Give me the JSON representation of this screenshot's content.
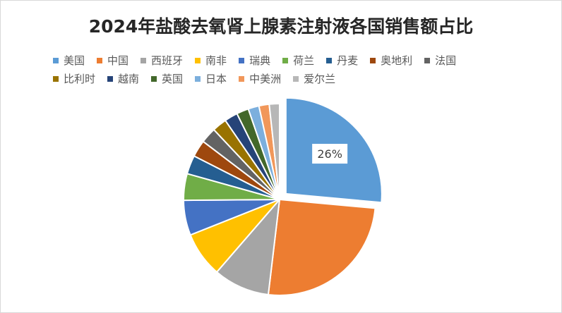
{
  "chart_data": {
    "type": "pie",
    "title": "2024年盐酸去氧肾上腺素注射液各国销售额占比",
    "legend_position": "top",
    "categories": [
      "美国",
      "中国",
      "西班牙",
      "南非",
      "瑞典",
      "荷兰",
      "丹麦",
      "奥地利",
      "法国",
      "比利时",
      "越南",
      "英国",
      "日本",
      "中美洲",
      "爱尔兰"
    ],
    "values": [
      26,
      25,
      9.3,
      7.5,
      5.8,
      4.4,
      3.1,
      2.8,
      2.6,
      2.4,
      2.2,
      2.0,
      1.8,
      1.7,
      1.7
    ],
    "unit": "%",
    "colors": [
      "#5b9bd5",
      "#ed7d31",
      "#a5a5a5",
      "#ffc000",
      "#4472c4",
      "#70ad47",
      "#255e91",
      "#9e480e",
      "#636363",
      "#997300",
      "#264478",
      "#43682b",
      "#7cafdd",
      "#f1975a",
      "#b7b7b7"
    ],
    "data_labels": [
      {
        "category": "美国",
        "text": "26%"
      }
    ],
    "exploded": [
      "美国"
    ],
    "start_angle_deg": 0
  }
}
